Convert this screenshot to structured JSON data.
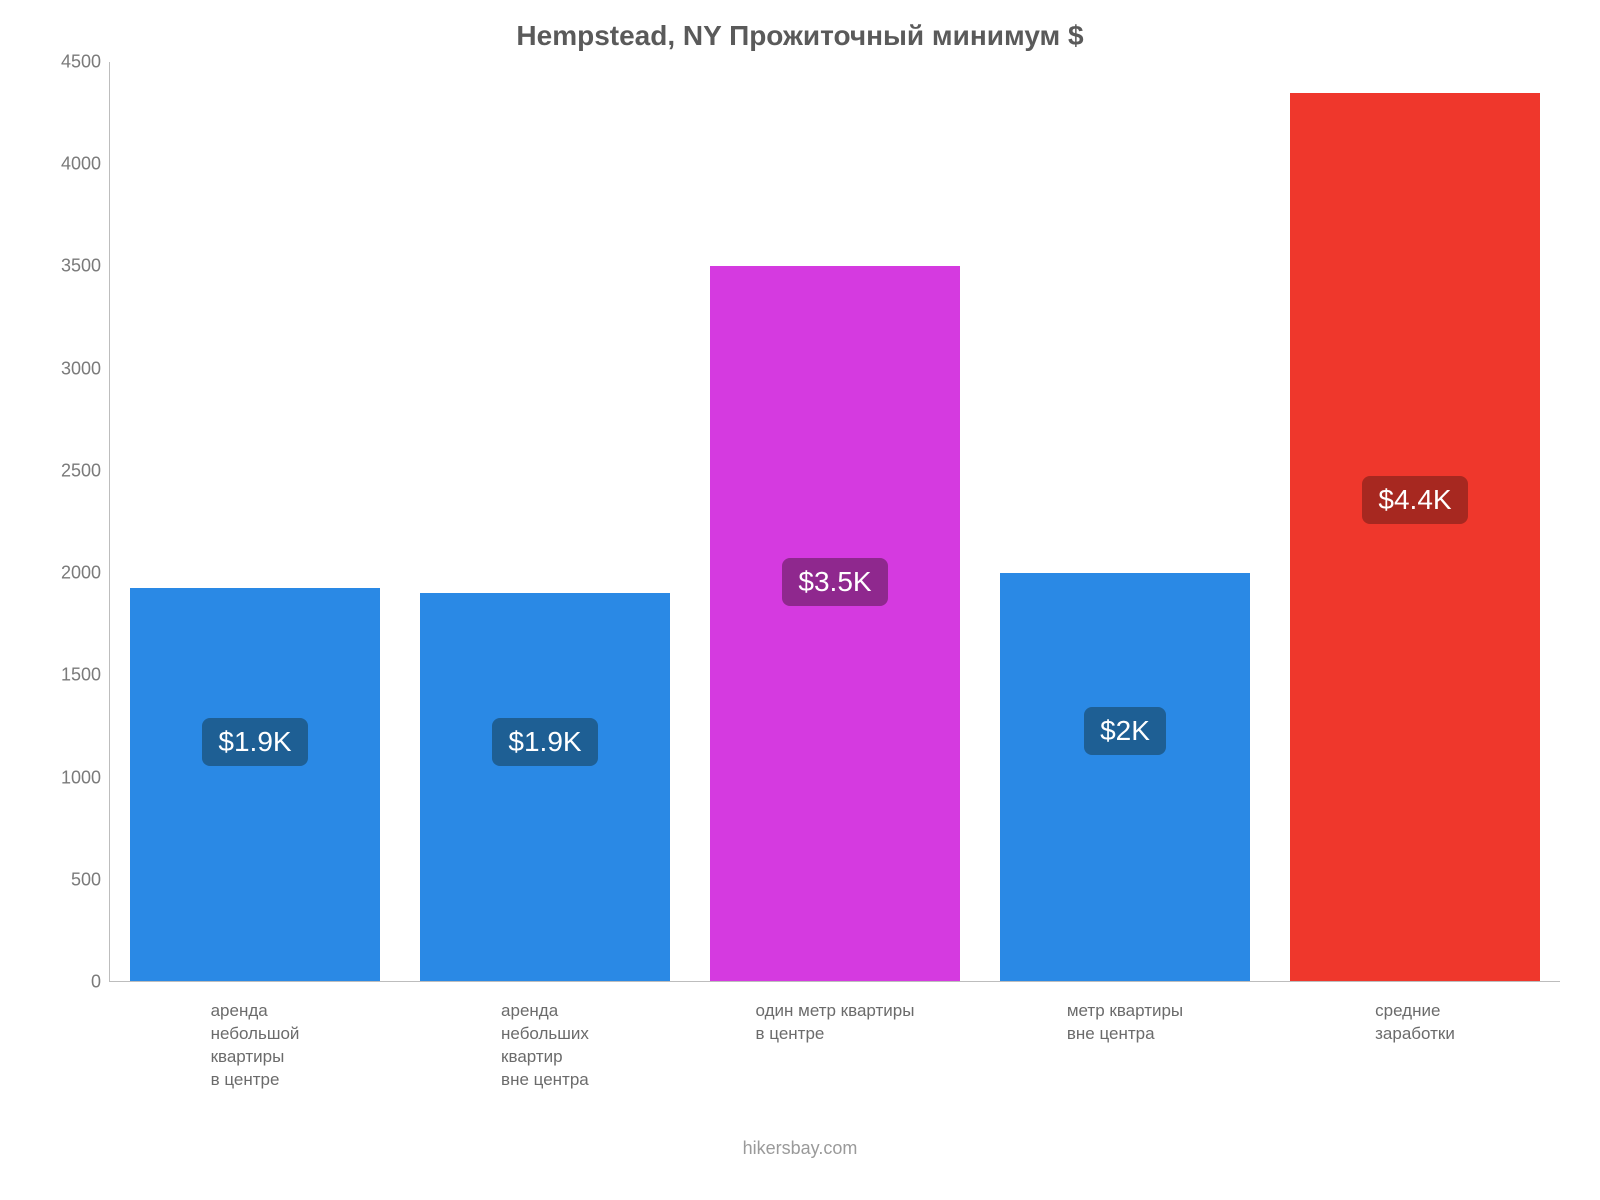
{
  "chart": {
    "type": "bar",
    "title": "Hempstead, NY Прожиточный минимум $",
    "title_fontsize": 28,
    "title_color": "#5a5a5a",
    "background_color": "#ffffff",
    "axis_color": "#bdbdbd",
    "yaxis": {
      "min": 0,
      "max": 4500,
      "step": 500,
      "tick_fontsize": 18,
      "tick_color": "#7a7a7a"
    },
    "xaxis": {
      "label_fontsize": 17,
      "label_color": "#6b6b6b"
    },
    "bar_width_pct": 86,
    "value_label_fontsize": 28,
    "bars": [
      {
        "category": "аренда\nнебольшой\nквартиры\nв центре",
        "value": 1925,
        "display": "$1.9K",
        "fill": "#2a89e5",
        "label_bg": "#1e5f94",
        "label_y_value": 1175
      },
      {
        "category": "аренда\nнебольших\nквартир\nвне центра",
        "value": 1900,
        "display": "$1.9K",
        "fill": "#2a89e5",
        "label_bg": "#1e5f94",
        "label_y_value": 1175
      },
      {
        "category": "один метр квартиры\nв центре",
        "value": 3500,
        "display": "$3.5K",
        "fill": "#d53ae0",
        "label_bg": "#8f288e",
        "label_y_value": 1960
      },
      {
        "category": "метр квартиры\nвне центра",
        "value": 2000,
        "display": "$2K",
        "fill": "#2a89e5",
        "label_bg": "#1e5f94",
        "label_y_value": 1230
      },
      {
        "category": "средние\nзаработки",
        "value": 4350,
        "display": "$4.4K",
        "fill": "#ef372c",
        "label_bg": "#a72820",
        "label_y_value": 2360
      }
    ],
    "footer": "hikersbay.com",
    "footer_fontsize": 18,
    "footer_color": "#9a9a9a"
  }
}
